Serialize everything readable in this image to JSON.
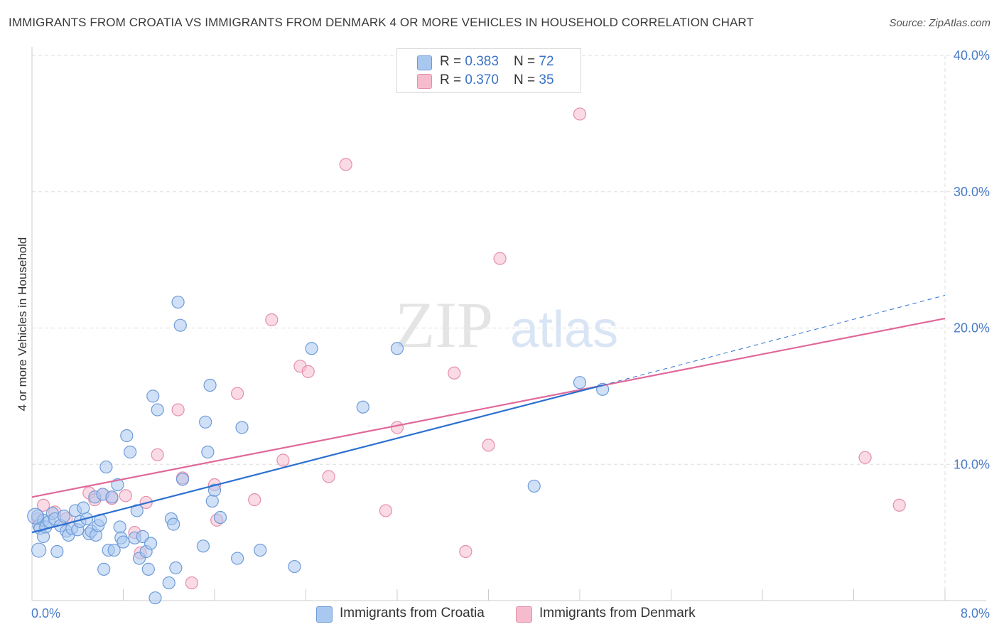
{
  "title": "IMMIGRANTS FROM CROATIA VS IMMIGRANTS FROM DENMARK 4 OR MORE VEHICLES IN HOUSEHOLD CORRELATION CHART",
  "source": "Source: ZipAtlas.com",
  "watermark": {
    "zip": "ZIP",
    "atlas": "atlas"
  },
  "legend": {
    "croatia": {
      "r_label": "R = ",
      "r_value": "0.383",
      "n_label": "N = ",
      "n_value": "72"
    },
    "denmark": {
      "r_label": "R = ",
      "r_value": "0.370",
      "n_label": "N = ",
      "n_value": "35"
    }
  },
  "bottom_legend": {
    "croatia": "Immigrants from Croatia",
    "denmark": "Immigrants from Denmark"
  },
  "colors": {
    "croatia_fill": "#a9c8f0",
    "croatia_stroke": "#6f9bd8",
    "croatia_line": "#2b6fcf",
    "denmark_fill": "#f6bccd",
    "denmark_stroke": "#e58fab",
    "denmark_line": "#e0689a",
    "grid": "#dddddd",
    "axis_text": "#4a7cc9"
  },
  "chart_data": {
    "type": "scatter",
    "title": "IMMIGRANTS FROM CROATIA VS IMMIGRANTS FROM DENMARK 4 OR MORE VEHICLES IN HOUSEHOLD CORRELATION CHART",
    "xlabel": "",
    "ylabel": "4 or more Vehicles in Household",
    "xlim": [
      0,
      8
    ],
    "ylim": [
      0,
      40
    ],
    "x_tick_labels": [
      "0.0%",
      "8.0%"
    ],
    "y_ticks": [
      10,
      20,
      30,
      40
    ],
    "y_tick_labels": [
      "10.0%",
      "20.0%",
      "30.0%",
      "40.0%"
    ],
    "legend_position": "top-center",
    "series": [
      {
        "name": "Immigrants from Croatia",
        "R": 0.383,
        "N": 72,
        "trend": {
          "x0": 0.0,
          "y0": 5.0,
          "x1": 5.0,
          "y1": 15.8,
          "dashed_to_x": 8.0,
          "dashed_to_y": 22.4
        },
        "points": [
          [
            0.05,
            6.2
          ],
          [
            0.06,
            5.5
          ],
          [
            0.07,
            5.3
          ],
          [
            0.1,
            5.9
          ],
          [
            0.1,
            4.7
          ],
          [
            0.12,
            5.4
          ],
          [
            0.15,
            5.8
          ],
          [
            0.18,
            6.4
          ],
          [
            0.2,
            6.0
          ],
          [
            0.22,
            3.6
          ],
          [
            0.25,
            5.5
          ],
          [
            0.28,
            6.2
          ],
          [
            0.3,
            5.1
          ],
          [
            0.32,
            4.8
          ],
          [
            0.35,
            5.3
          ],
          [
            0.38,
            6.6
          ],
          [
            0.4,
            5.2
          ],
          [
            0.42,
            5.8
          ],
          [
            0.45,
            6.8
          ],
          [
            0.48,
            6.0
          ],
          [
            0.5,
            4.9
          ],
          [
            0.52,
            5.1
          ],
          [
            0.55,
            7.6
          ],
          [
            0.56,
            4.8
          ],
          [
            0.58,
            5.5
          ],
          [
            0.6,
            5.9
          ],
          [
            0.62,
            7.8
          ],
          [
            0.63,
            2.3
          ],
          [
            0.65,
            9.8
          ],
          [
            0.67,
            3.7
          ],
          [
            0.7,
            7.6
          ],
          [
            0.72,
            3.7
          ],
          [
            0.75,
            8.5
          ],
          [
            0.77,
            5.4
          ],
          [
            0.78,
            4.6
          ],
          [
            0.8,
            4.3
          ],
          [
            0.83,
            12.1
          ],
          [
            0.86,
            10.9
          ],
          [
            0.9,
            4.6
          ],
          [
            0.92,
            6.6
          ],
          [
            0.94,
            3.1
          ],
          [
            0.97,
            4.7
          ],
          [
            1.0,
            3.6
          ],
          [
            1.02,
            2.3
          ],
          [
            1.04,
            4.2
          ],
          [
            1.06,
            15.0
          ],
          [
            1.08,
            0.2
          ],
          [
            1.1,
            14.0
          ],
          [
            1.2,
            1.3
          ],
          [
            1.22,
            6.0
          ],
          [
            1.24,
            5.6
          ],
          [
            1.26,
            2.4
          ],
          [
            1.28,
            21.9
          ],
          [
            1.3,
            20.2
          ],
          [
            1.32,
            8.9
          ],
          [
            1.5,
            4.0
          ],
          [
            1.52,
            13.1
          ],
          [
            1.54,
            10.9
          ],
          [
            1.56,
            15.8
          ],
          [
            1.58,
            7.3
          ],
          [
            1.6,
            8.1
          ],
          [
            1.65,
            6.1
          ],
          [
            1.8,
            3.1
          ],
          [
            1.84,
            12.7
          ],
          [
            2.0,
            3.7
          ],
          [
            2.3,
            2.5
          ],
          [
            2.45,
            18.5
          ],
          [
            2.9,
            14.2
          ],
          [
            3.2,
            18.5
          ],
          [
            4.4,
            8.4
          ],
          [
            4.8,
            16.0
          ],
          [
            5.0,
            15.5
          ]
        ]
      },
      {
        "name": "Immigrants from Denmark",
        "R": 0.37,
        "N": 35,
        "trend": {
          "x0": 0.0,
          "y0": 7.6,
          "x1": 8.0,
          "y1": 20.7
        },
        "points": [
          [
            0.05,
            6.0
          ],
          [
            0.1,
            7.0
          ],
          [
            0.2,
            6.5
          ],
          [
            0.3,
            6.0
          ],
          [
            0.5,
            7.9
          ],
          [
            0.55,
            7.4
          ],
          [
            0.62,
            7.8
          ],
          [
            0.7,
            7.5
          ],
          [
            0.82,
            7.7
          ],
          [
            0.9,
            5.0
          ],
          [
            0.95,
            3.5
          ],
          [
            1.0,
            7.2
          ],
          [
            1.1,
            10.7
          ],
          [
            1.28,
            14.0
          ],
          [
            1.32,
            9.0
          ],
          [
            1.4,
            1.3
          ],
          [
            1.6,
            8.5
          ],
          [
            1.62,
            5.9
          ],
          [
            1.8,
            15.2
          ],
          [
            1.95,
            7.4
          ],
          [
            2.1,
            20.6
          ],
          [
            2.2,
            10.3
          ],
          [
            2.35,
            17.2
          ],
          [
            2.42,
            16.8
          ],
          [
            2.6,
            9.1
          ],
          [
            2.75,
            32.0
          ],
          [
            3.1,
            6.6
          ],
          [
            3.2,
            12.7
          ],
          [
            3.7,
            16.7
          ],
          [
            3.8,
            3.6
          ],
          [
            4.0,
            11.4
          ],
          [
            4.1,
            25.1
          ],
          [
            4.8,
            35.7
          ],
          [
            7.3,
            10.5
          ],
          [
            7.6,
            7.0
          ]
        ]
      }
    ]
  }
}
